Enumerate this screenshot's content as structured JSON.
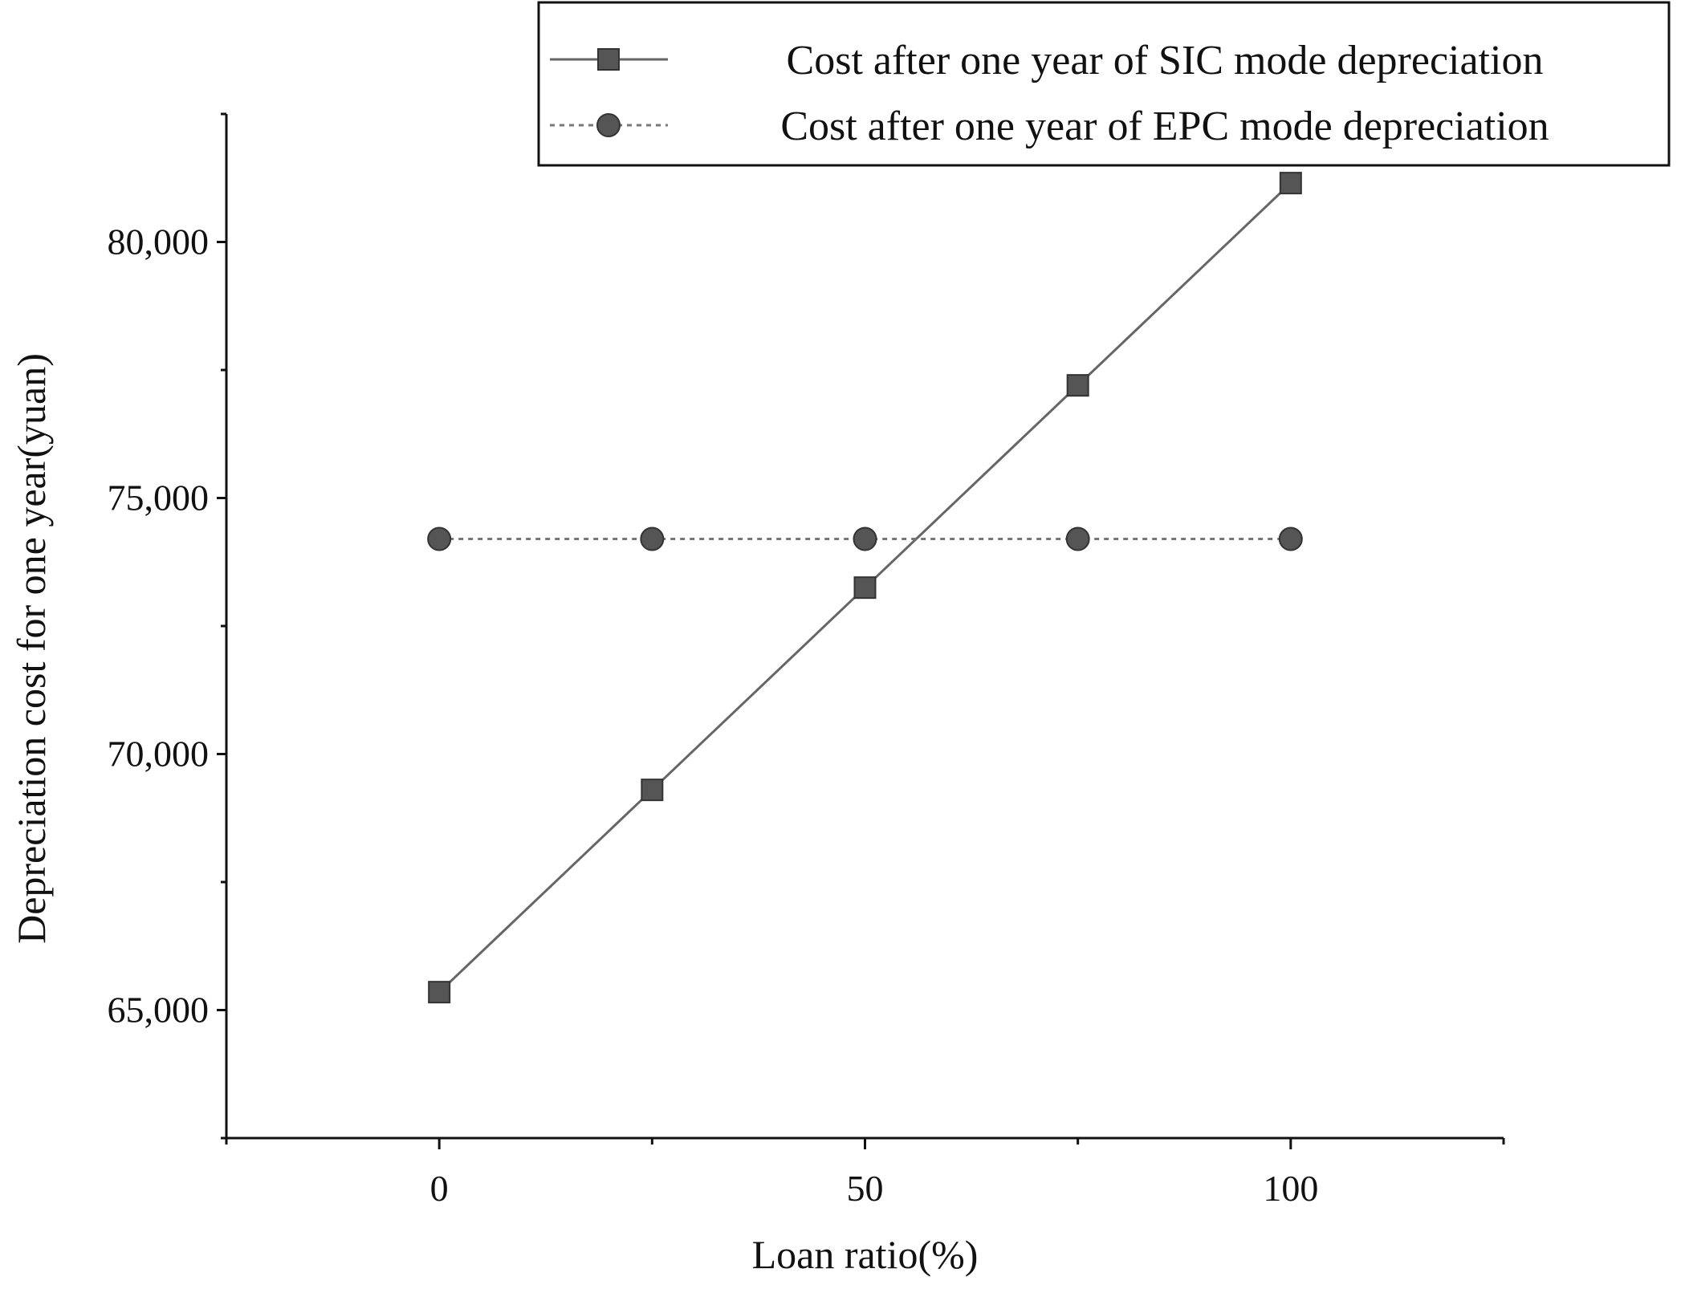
{
  "chart_data": {
    "type": "line",
    "title": "",
    "xlabel": "Loan ratio(%)",
    "ylabel": "Depreciation cost for one year(yuan)",
    "x": [
      0,
      25,
      50,
      75,
      100
    ],
    "xlim": [
      -25,
      125
    ],
    "ylim": [
      62500,
      82500
    ],
    "x_ticks": [
      0,
      50,
      100
    ],
    "x_tick_labels": [
      "0",
      "50",
      "100"
    ],
    "x_minor_ticks": [
      -25,
      25,
      75,
      125
    ],
    "y_ticks": [
      65000,
      70000,
      75000,
      80000
    ],
    "y_tick_labels": [
      "65,000",
      "70,000",
      "75,000",
      "80,000"
    ],
    "y_minor_ticks": [
      62500,
      67500,
      72500,
      77500,
      82500
    ],
    "grid": false,
    "legend_position": "top-right",
    "series": [
      {
        "name": "Cost after one year of SIC mode depreciation",
        "values": [
          65350,
          69300,
          73250,
          77200,
          81150
        ],
        "marker": "square",
        "line_style": "solid",
        "color": "#555555"
      },
      {
        "name": "Cost after one year of EPC mode depreciation",
        "values": [
          74200,
          74200,
          74200,
          74200,
          74200
        ],
        "marker": "circle",
        "line_style": "dotted",
        "color": "#555555"
      }
    ]
  }
}
